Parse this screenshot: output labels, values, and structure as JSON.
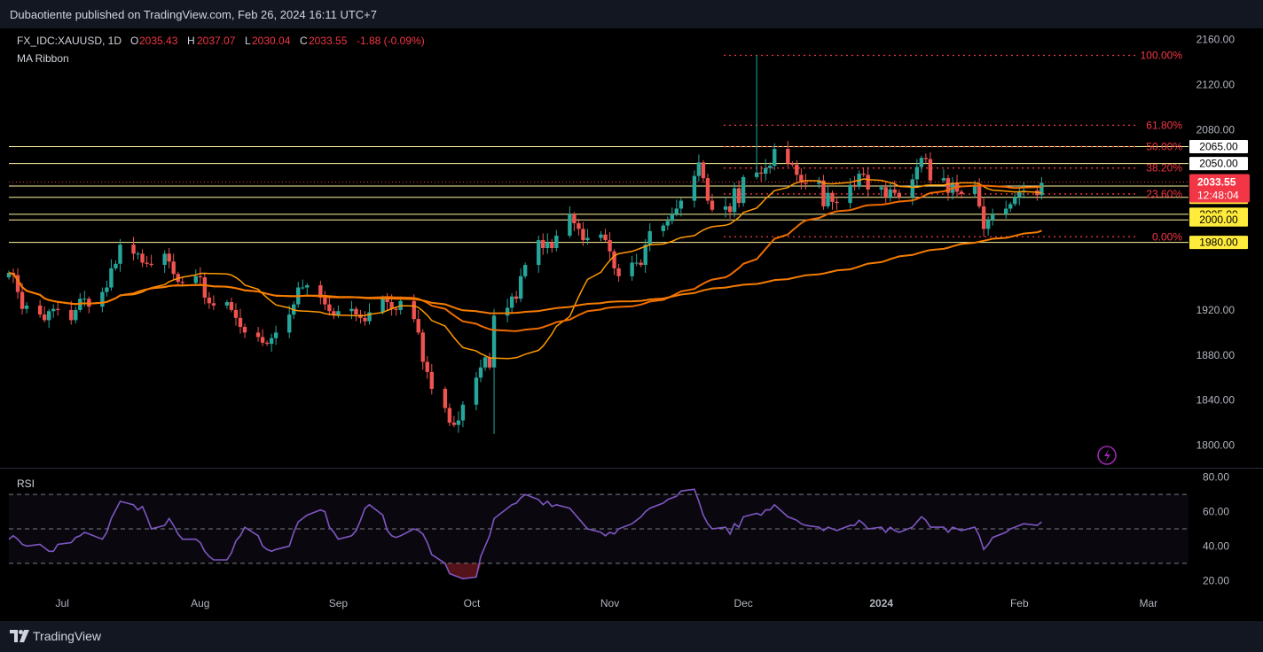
{
  "header": {
    "published": "Dubaotiente published on TradingView.com, Feb 26, 2024 16:11 UTC+7",
    "symbol": "FX_IDC:XAUUSD, 1D",
    "o_label": "O",
    "o_value": "2035.43",
    "h_label": "H",
    "h_value": "2037.07",
    "l_label": "L",
    "l_value": "2030.04",
    "c_label": "C",
    "c_value": "2033.55",
    "change": "-1.88 (-0.09%)",
    "indicator": "MA Ribbon"
  },
  "footer": {
    "brand": "TradingView"
  },
  "rsi_label": "RSI",
  "colors": {
    "background": "#000000",
    "up": "#26a69a",
    "down": "#ef5350",
    "fib": "#f23645",
    "hline": "#fff59d",
    "ma_fast": "#ff9800",
    "ma_slow": "#f57c00",
    "rsi": "#7e57c2",
    "price_badge": "#f23645",
    "level_badge": "#ffeb3b"
  },
  "chart_data": [
    {
      "type": "candlestick",
      "title": "FX_IDC:XAUUSD, 1D",
      "ylim": [
        1780,
        2170
      ],
      "y_ticks": [
        "2160.00",
        "2120.00",
        "2080.00",
        "1920.00",
        "1880.00",
        "1840.00",
        "1800.00"
      ],
      "x_ticks": [
        "Jul",
        "Aug",
        "Sep",
        "Oct",
        "Nov",
        "Dec",
        "2024",
        "Feb",
        "Mar"
      ],
      "x_tick_dates": [
        "2023-07-01",
        "2023-08-01",
        "2023-09-01",
        "2023-10-01",
        "2023-11-01",
        "2023-12-01",
        "2024-01-01",
        "2024-02-01",
        "2024-03-01"
      ],
      "date_range": [
        "2023-06-19",
        "2024-03-10"
      ],
      "last_price": "2033.55",
      "countdown": "12:48:04",
      "close_series": {
        "start": "2023-06-19",
        "values": [
          1953,
          1951,
          1936,
          1921,
          1924,
          1916,
          1911,
          1919,
          1921,
          1920,
          1911,
          1920,
          1930,
          1930,
          1923,
          1936,
          1940,
          1957,
          1961,
          1978,
          1970,
          1970,
          1962,
          1961,
          1960,
          1970,
          1963,
          1952,
          1945,
          1944,
          1950,
          1949,
          1931,
          1926,
          1924,
          1927,
          1920,
          1913,
          1905,
          1900,
          1896,
          1891,
          1890,
          1895,
          1900,
          1916,
          1925,
          1940,
          1940,
          1942,
          1931,
          1925,
          1919,
          1915,
          1919,
          1921,
          1916,
          1913,
          1910,
          1918,
          1930,
          1927,
          1921,
          1920,
          1928,
          1912,
          1900,
          1874,
          1865,
          1850,
          1833,
          1820,
          1818,
          1822,
          1836,
          1860,
          1869,
          1878,
          1869,
          1915,
          1922,
          1932,
          1930,
          1950,
          1960,
          1982,
          1975,
          1980,
          1975,
          1986,
          2005,
          1997,
          1992,
          1982,
          1984,
          1987,
          1982,
          1972,
          1957,
          1950,
          1962,
          1962,
          1960,
          1978,
          1990,
          1995,
          1999,
          2005,
          2010,
          2017,
          2039,
          2051,
          2037,
          2017,
          2009,
          2012,
          2007,
          2028,
          2015,
          2038,
          2042,
          2041,
          2046,
          2048,
          2063,
          2050,
          2049,
          2040,
          2033,
          2032,
          2035,
          2012,
          2024,
          2016,
          2015,
          2031,
          2030,
          2041,
          2040,
          2027,
          2029,
          2020,
          2027,
          2024,
          2020,
          2036,
          2047,
          2055,
          2054,
          2035,
          2037,
          2024,
          2033,
          2025,
          2023,
          2031,
          2012,
          1992,
          2000,
          2005,
          2010,
          2014,
          2020,
          2025,
          2026,
          2022,
          2033
        ]
      },
      "high": {
        "date": "2023-12-04",
        "value": 2146
      },
      "low": {
        "date": "2023-10-06",
        "value": 1810
      },
      "fibonacci": [
        {
          "label": "100.00%",
          "value": 2146
        },
        {
          "label": "61.80%",
          "value": 2084
        },
        {
          "label": "50.00%",
          "value": 2065
        },
        {
          "label": "38.20%",
          "value": 2046
        },
        {
          "label": "23.60%",
          "value": 2023
        },
        {
          "label": "0.00%",
          "value": 1985
        }
      ],
      "levels": [
        {
          "label": "2065.00",
          "value": 2065
        },
        {
          "label": "2050.00",
          "value": 2050
        },
        {
          "label": "2030.00",
          "value": 2030
        },
        {
          "label": "2020.00",
          "value": 2020
        },
        {
          "label": "2005.00",
          "value": 2005
        },
        {
          "label": "2000.00",
          "value": 2000
        },
        {
          "label": "1980.00",
          "value": 1980
        }
      ],
      "ma_ribbon": [
        {
          "name": "MA 20",
          "color": "#ff9800"
        },
        {
          "name": "MA 50",
          "color": "#ef6c00"
        },
        {
          "name": "MA 100",
          "color": "#f57c00"
        }
      ]
    },
    {
      "type": "line",
      "title": "RSI",
      "ylim": [
        15,
        85
      ],
      "y_ticks": [
        "80.00",
        "60.00",
        "40.00",
        "20.00"
      ],
      "bands": [
        70,
        50,
        30
      ],
      "oversold_fill": true,
      "values": [
        44,
        46,
        44,
        41,
        40,
        41,
        39,
        37,
        37,
        41,
        42,
        45,
        46,
        48,
        47,
        44,
        48,
        56,
        61,
        66,
        64,
        61,
        63,
        57,
        50,
        52,
        56,
        52,
        47,
        44,
        44,
        42,
        37,
        34,
        32,
        32,
        36,
        43,
        46,
        51,
        46,
        40,
        38,
        37,
        38,
        40,
        48,
        54,
        56,
        58,
        61,
        60,
        51,
        48,
        44,
        46,
        49,
        55,
        62,
        64,
        58,
        49,
        46,
        45,
        46,
        50,
        49,
        47,
        42,
        35,
        30,
        24,
        23,
        22,
        21,
        22,
        34,
        40,
        46,
        56,
        62,
        64,
        65,
        68,
        70,
        67,
        64,
        66,
        63,
        64,
        62,
        59,
        56,
        53,
        50,
        48,
        46,
        48,
        47,
        50,
        53,
        55,
        57,
        60,
        62,
        65,
        67,
        68,
        69,
        72,
        73,
        66,
        58,
        53,
        50,
        51,
        47,
        53,
        51,
        57,
        59,
        58,
        61,
        61,
        64,
        57,
        56,
        55,
        53,
        52,
        51,
        49,
        51,
        50,
        49,
        52,
        52,
        55,
        53,
        50,
        51,
        48,
        51,
        49,
        48,
        51,
        54,
        57,
        55,
        51,
        51,
        48,
        51,
        50,
        49,
        51,
        46,
        38,
        41,
        45,
        48,
        50,
        51,
        52,
        53,
        52,
        54
      ]
    }
  ]
}
